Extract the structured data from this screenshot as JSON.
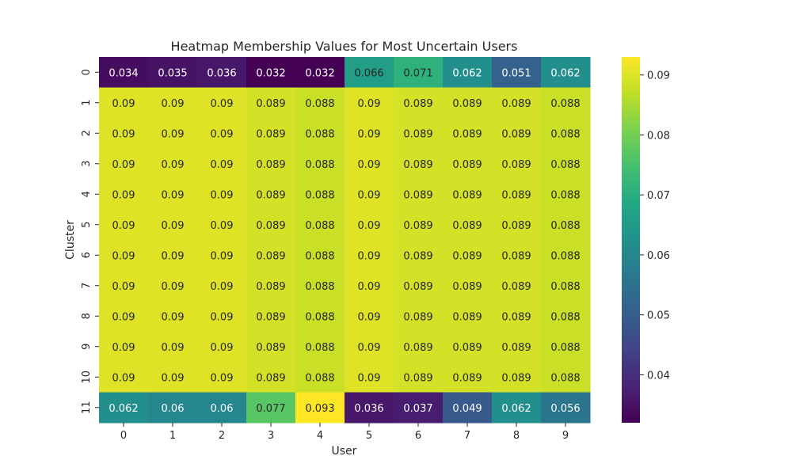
{
  "chart_data": {
    "type": "heatmap",
    "title": "Heatmap Membership Values for Most Uncertain Users",
    "xlabel": "User",
    "ylabel": "Cluster",
    "x_categories": [
      "0",
      "1",
      "2",
      "3",
      "4",
      "5",
      "6",
      "7",
      "8",
      "9"
    ],
    "y_categories": [
      "0",
      "1",
      "2",
      "3",
      "4",
      "5",
      "6",
      "7",
      "8",
      "9",
      "10",
      "11"
    ],
    "values": [
      [
        0.034,
        0.035,
        0.036,
        0.032,
        0.032,
        0.066,
        0.071,
        0.062,
        0.051,
        0.062
      ],
      [
        0.09,
        0.09,
        0.09,
        0.089,
        0.088,
        0.09,
        0.089,
        0.089,
        0.089,
        0.088
      ],
      [
        0.09,
        0.09,
        0.09,
        0.089,
        0.088,
        0.09,
        0.089,
        0.089,
        0.089,
        0.088
      ],
      [
        0.09,
        0.09,
        0.09,
        0.089,
        0.088,
        0.09,
        0.089,
        0.089,
        0.089,
        0.088
      ],
      [
        0.09,
        0.09,
        0.09,
        0.089,
        0.088,
        0.09,
        0.089,
        0.089,
        0.089,
        0.088
      ],
      [
        0.09,
        0.09,
        0.09,
        0.089,
        0.088,
        0.09,
        0.089,
        0.089,
        0.089,
        0.088
      ],
      [
        0.09,
        0.09,
        0.09,
        0.089,
        0.088,
        0.09,
        0.089,
        0.089,
        0.089,
        0.088
      ],
      [
        0.09,
        0.09,
        0.09,
        0.089,
        0.088,
        0.09,
        0.089,
        0.089,
        0.089,
        0.088
      ],
      [
        0.09,
        0.09,
        0.09,
        0.089,
        0.088,
        0.09,
        0.089,
        0.089,
        0.089,
        0.088
      ],
      [
        0.09,
        0.09,
        0.09,
        0.089,
        0.088,
        0.09,
        0.089,
        0.089,
        0.089,
        0.088
      ],
      [
        0.09,
        0.09,
        0.09,
        0.089,
        0.088,
        0.09,
        0.089,
        0.089,
        0.089,
        0.088
      ],
      [
        0.062,
        0.06,
        0.06,
        0.077,
        0.093,
        0.036,
        0.037,
        0.049,
        0.062,
        0.056
      ]
    ],
    "colormap": "viridis",
    "colorbar": {
      "range": [
        0.032,
        0.093
      ],
      "ticks": [
        0.04,
        0.05,
        0.06,
        0.07,
        0.08,
        0.09
      ],
      "tick_labels": [
        "0.04",
        "0.05",
        "0.06",
        "0.07",
        "0.08",
        "0.09"
      ]
    },
    "annotations": true,
    "grid": false,
    "legend": "colorbar-right"
  }
}
